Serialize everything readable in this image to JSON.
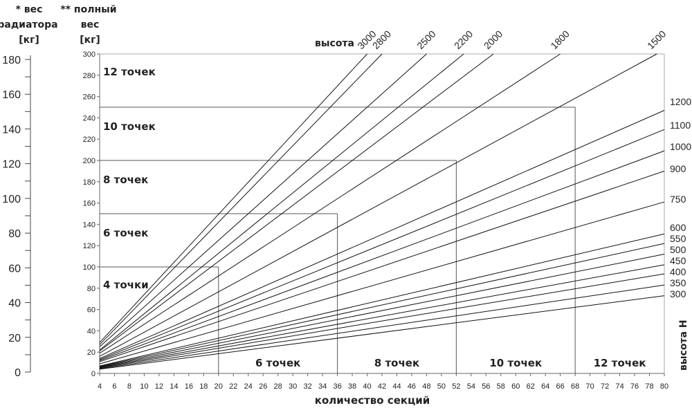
{
  "chart_data": {
    "type": "line",
    "left_axis_title": [
      "* вес",
      "радиатора",
      "[кг]"
    ],
    "y_axis_title": [
      "** полный",
      "вес",
      "[кг]"
    ],
    "xlabel": "количество секций",
    "top_series_title": "высота",
    "right_series_title": "высота H",
    "xlim": [
      4,
      80
    ],
    "ylim": [
      0,
      300
    ],
    "left_axis_lim": [
      0,
      180
    ],
    "x_ticks": [
      4,
      6,
      8,
      10,
      12,
      14,
      16,
      18,
      20,
      22,
      24,
      26,
      28,
      30,
      32,
      34,
      36,
      38,
      40,
      42,
      44,
      46,
      48,
      50,
      52,
      54,
      56,
      58,
      60,
      62,
      64,
      66,
      68,
      70,
      72,
      74,
      76,
      78,
      80
    ],
    "y_ticks": [
      0,
      20,
      40,
      60,
      80,
      100,
      120,
      140,
      160,
      180,
      200,
      220,
      240,
      260,
      280,
      300
    ],
    "left_ticks": [
      0,
      20,
      40,
      60,
      80,
      100,
      120,
      140,
      160,
      180
    ],
    "series": [
      {
        "name": "300",
        "start": 4,
        "end": 73
      },
      {
        "name": "350",
        "start": 4.5,
        "end": 83
      },
      {
        "name": "400",
        "start": 5,
        "end": 93.5
      },
      {
        "name": "450",
        "start": 5.5,
        "end": 102
      },
      {
        "name": "500",
        "start": 6,
        "end": 112
      },
      {
        "name": "550",
        "start": 6.5,
        "end": 122
      },
      {
        "name": "600",
        "start": 7,
        "end": 131
      },
      {
        "name": "750",
        "start": 9,
        "end": 161
      },
      {
        "name": "900",
        "start": 11,
        "end": 190
      },
      {
        "name": "1000",
        "start": 12,
        "end": 209
      },
      {
        "name": "1100",
        "start": 13,
        "end": 229
      },
      {
        "name": "1200",
        "start": 14,
        "end": 247
      },
      {
        "name": "1500",
        "start": 16,
        "x_at_300": 79
      },
      {
        "name": "1800",
        "start": 19,
        "x_at_300": 66
      },
      {
        "name": "2000",
        "start": 21,
        "x_at_300": 57
      },
      {
        "name": "2200",
        "start": 22,
        "x_at_300": 53
      },
      {
        "name": "2500",
        "start": 25,
        "x_at_300": 48
      },
      {
        "name": "2800",
        "start": 27,
        "x_at_300": 42
      },
      {
        "name": "3000",
        "start": 29,
        "x_at_300": 40
      }
    ],
    "regions": [
      {
        "label": "4 точки",
        "max_sections": 20,
        "max_weight": 100
      },
      {
        "label": "6 точек",
        "max_sections": 36,
        "max_weight": 150
      },
      {
        "label": "8 точек",
        "max_sections": 52,
        "max_weight": 200
      },
      {
        "label": "10 точек",
        "max_sections": 68,
        "max_weight": 250
      },
      {
        "label": "12 точек",
        "max_sections": 80,
        "max_weight": 300
      }
    ]
  }
}
